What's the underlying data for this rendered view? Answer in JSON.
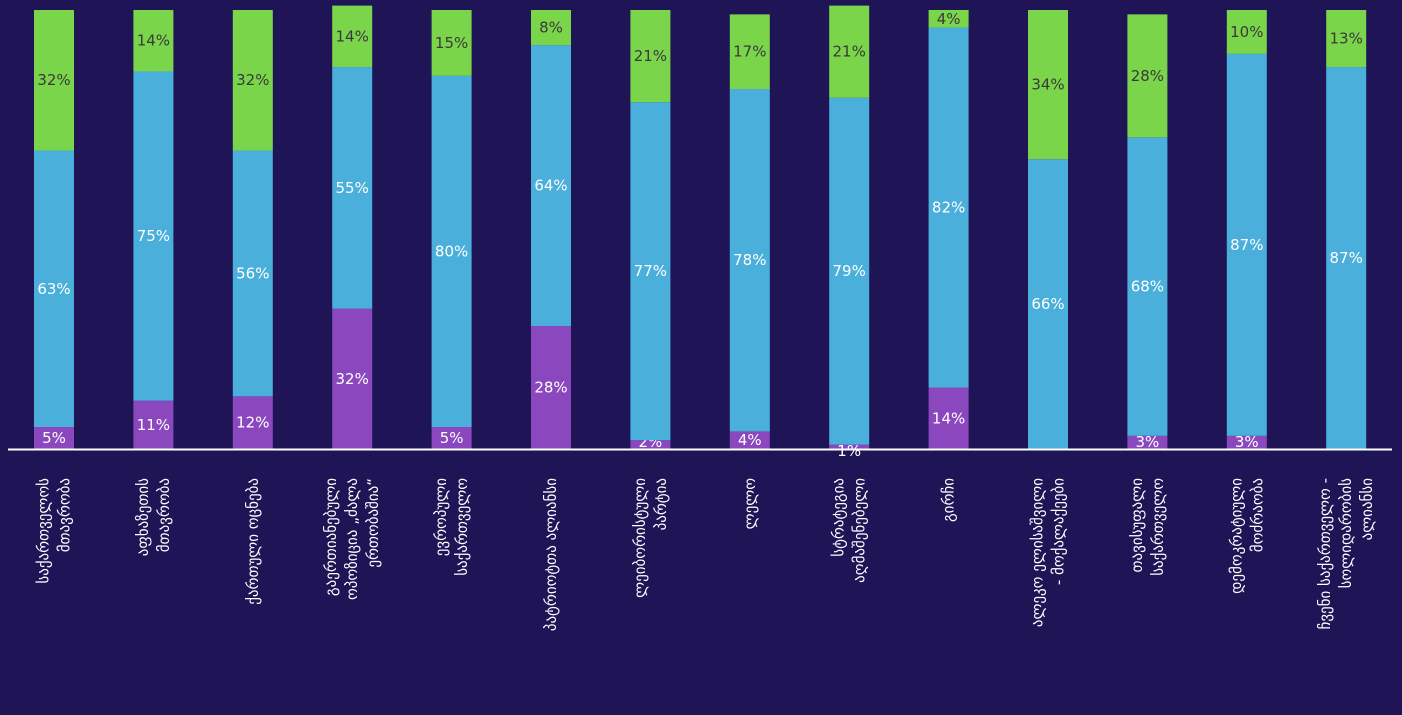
{
  "chart_data": {
    "type": "bar",
    "stacked": true,
    "percent_stacked": true,
    "title": "",
    "xlabel": "",
    "ylabel": "",
    "ylim": [
      0,
      100
    ],
    "grid": false,
    "legend": "none",
    "categories": [
      [
        "საქართველოს",
        "მთავრობა"
      ],
      [
        "აფხაზეთის",
        "მთავრობა"
      ],
      [
        "ქართული ოცნება"
      ],
      [
        "გაერთიანებული",
        "ოპოზიცია „ძალა",
        "ერთობაშია“"
      ],
      [
        "ევროპული",
        "საქართველო"
      ],
      [
        "პატრიოტთა ალიანსი"
      ],
      [
        "ლეიბორისტული",
        "პარტია"
      ],
      [
        "ლელო"
      ],
      [
        "სტრატეგია",
        "აღმაშენებელი"
      ],
      [
        "გირჩი"
      ],
      [
        "ალეკო ელისაშვილი",
        "- მოქალაქეები"
      ],
      [
        "თავისუფალი",
        "საქართველო"
      ],
      [
        "დემოკრატიული",
        "მოძრაობა"
      ],
      [
        "ჩვენი საქართველო -",
        "სოლიდარობის",
        "ალიანსი"
      ]
    ],
    "series": [
      {
        "values": [
          5,
          11,
          12,
          32,
          5,
          28,
          2,
          4,
          1,
          14,
          0,
          3,
          3,
          0
        ],
        "labels": [
          "5%",
          "11%",
          "12%",
          "32%",
          "5%",
          "28%",
          "2%",
          "4%",
          "1%",
          "14%",
          "",
          "3%",
          "3%",
          ""
        ],
        "color": "#8b48be",
        "label_color": "#ffffff"
      },
      {
        "values": [
          63,
          75,
          56,
          55,
          80,
          64,
          77,
          78,
          79,
          82,
          66,
          68,
          87,
          87
        ],
        "labels": [
          "63%",
          "75%",
          "56%",
          "55%",
          "80%",
          "64%",
          "77%",
          "78%",
          "79%",
          "82%",
          "66%",
          "68%",
          "87%",
          "87%"
        ],
        "color": "#4aafda",
        "label_color": "#ffffff"
      },
      {
        "values": [
          32,
          14,
          32,
          14,
          15,
          8,
          21,
          17,
          21,
          4,
          34,
          28,
          10,
          13
        ],
        "labels": [
          "32%",
          "14%",
          "32%",
          "14%",
          "15%",
          "8%",
          "21%",
          "17%",
          "21%",
          "4%",
          "34%",
          "28%",
          "10%",
          "13%"
        ],
        "color": "#7ad54a",
        "label_color": "#3a3a3a"
      }
    ],
    "axis_color": "#ffffff",
    "background": "#1e1456"
  }
}
